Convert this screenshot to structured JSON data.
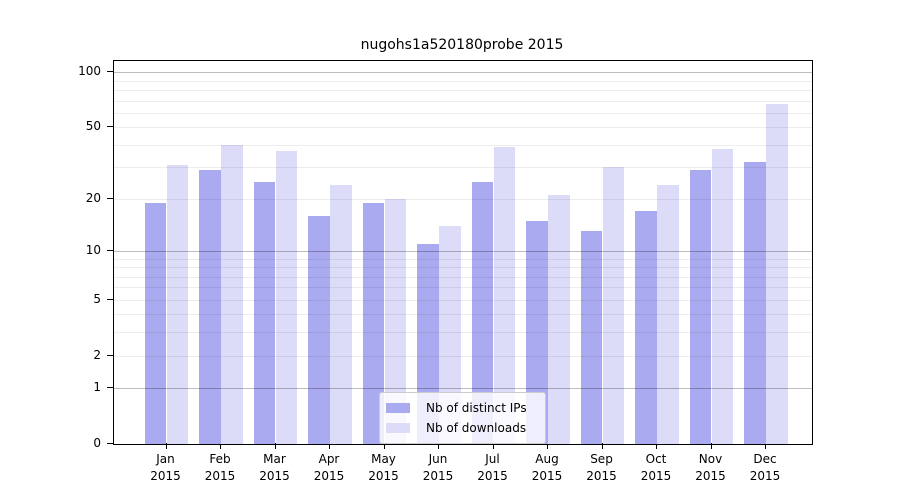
{
  "chart_data": {
    "type": "bar",
    "title": "nugohs1a520180probe 2015",
    "categories": [
      "Jan",
      "Feb",
      "Mar",
      "Apr",
      "May",
      "Jun",
      "Jul",
      "Aug",
      "Sep",
      "Oct",
      "Nov",
      "Dec"
    ],
    "year": "2015",
    "series": [
      {
        "name": "Nb of distinct IPs",
        "color": "#aaaaf0",
        "values": [
          19,
          29,
          25,
          16,
          19,
          11,
          25,
          15,
          13,
          17,
          29,
          32
        ]
      },
      {
        "name": "Nb of downloads",
        "color": "#dcdcf8",
        "values": [
          31,
          40,
          37,
          24,
          20,
          14,
          39,
          21,
          30,
          24,
          38,
          67
        ]
      }
    ],
    "xlabel": "",
    "ylabel": "",
    "y_ticks": [
      0,
      1,
      2,
      5,
      10,
      20,
      50,
      100
    ],
    "minor_gridlines": [
      2,
      3,
      4,
      5,
      6,
      7,
      8,
      9,
      20,
      30,
      40,
      50,
      60,
      70,
      80,
      90
    ],
    "major_gridlines": [
      1,
      10,
      100
    ],
    "y_scale": "log10(1+x)",
    "ylim": [
      0,
      115
    ],
    "grid": true,
    "legend_position": "lower center"
  }
}
